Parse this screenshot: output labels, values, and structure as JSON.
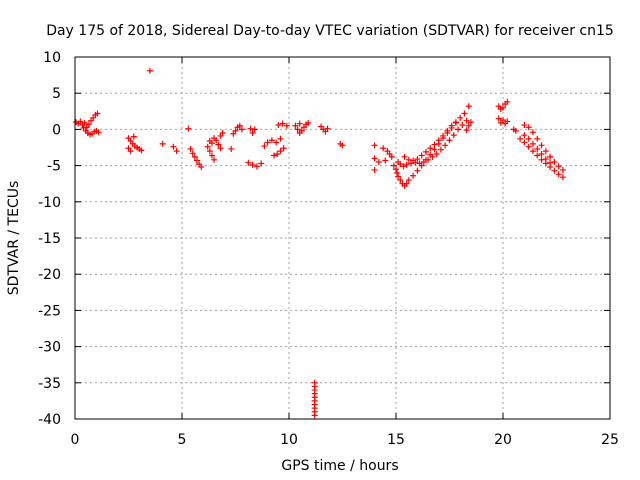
{
  "chart_data": {
    "type": "scatter",
    "title": "Day 175 of 2018, Sidereal Day-to-day VTEC variation (SDTVAR) for receiver cn15",
    "xlabel": "GPS time / hours",
    "ylabel": "SDTVAR / TECUs",
    "xlim": [
      0,
      25
    ],
    "ylim": [
      -40,
      10
    ],
    "x_ticks": [
      0,
      5,
      10,
      15,
      20,
      25
    ],
    "x_tick_labels": [
      "0",
      "5",
      "10",
      "15",
      "20",
      "25"
    ],
    "y_ticks": [
      10,
      5,
      0,
      -5,
      -10,
      -15,
      -20,
      -25,
      -30,
      -35,
      -40
    ],
    "y_tick_labels": [
      "10",
      "5",
      "0",
      "-5",
      "-10",
      "-15",
      "-20",
      "-25",
      "-30",
      "-35",
      "-40"
    ],
    "grid": true,
    "marker": "plus",
    "color": "#ff0000",
    "series": [
      {
        "name": "SDTVAR",
        "points": [
          [
            0.05,
            1.0
          ],
          [
            0.15,
            0.8
          ],
          [
            0.25,
            1.1
          ],
          [
            0.35,
            0.6
          ],
          [
            0.45,
            0.9
          ],
          [
            0.55,
            0.3
          ],
          [
            0.65,
            0.7
          ],
          [
            0.75,
            1.2
          ],
          [
            0.85,
            1.6
          ],
          [
            0.95,
            2.0
          ],
          [
            1.05,
            2.2
          ],
          [
            0.4,
            0.2
          ],
          [
            0.5,
            -0.2
          ],
          [
            0.6,
            -0.5
          ],
          [
            0.7,
            -0.7
          ],
          [
            0.8,
            -0.6
          ],
          [
            0.9,
            -0.3
          ],
          [
            1.0,
            -0.2
          ],
          [
            1.1,
            -0.4
          ],
          [
            2.5,
            -1.2
          ],
          [
            2.6,
            -1.6
          ],
          [
            2.7,
            -2.0
          ],
          [
            2.8,
            -2.3
          ],
          [
            2.9,
            -2.5
          ],
          [
            3.0,
            -2.7
          ],
          [
            3.1,
            -2.9
          ],
          [
            2.5,
            -2.6
          ],
          [
            2.6,
            -3.0
          ],
          [
            2.75,
            -1.0
          ],
          [
            3.5,
            8.1
          ],
          [
            4.1,
            -2.0
          ],
          [
            4.6,
            -2.4
          ],
          [
            4.75,
            -3.0
          ],
          [
            5.3,
            0.1
          ],
          [
            5.4,
            -2.7
          ],
          [
            5.5,
            -3.3
          ],
          [
            5.6,
            -3.8
          ],
          [
            5.7,
            -4.3
          ],
          [
            5.8,
            -4.8
          ],
          [
            5.9,
            -5.2
          ],
          [
            6.2,
            -2.4
          ],
          [
            6.3,
            -3.0
          ],
          [
            6.4,
            -3.6
          ],
          [
            6.5,
            -4.2
          ],
          [
            6.3,
            -1.6
          ],
          [
            6.4,
            -1.9
          ],
          [
            6.5,
            -1.2
          ],
          [
            6.6,
            -1.5
          ],
          [
            6.7,
            -2.1
          ],
          [
            6.8,
            -2.6
          ],
          [
            6.9,
            -0.5
          ],
          [
            6.8,
            -0.9
          ],
          [
            7.3,
            -2.7
          ],
          [
            7.4,
            -0.6
          ],
          [
            7.5,
            -0.2
          ],
          [
            7.6,
            0.3
          ],
          [
            7.7,
            0.5
          ],
          [
            7.8,
            0.0
          ],
          [
            8.2,
            0.1
          ],
          [
            8.3,
            -0.5
          ],
          [
            8.4,
            0.0
          ],
          [
            8.1,
            -4.6
          ],
          [
            8.3,
            -4.9
          ],
          [
            8.5,
            -5.1
          ],
          [
            8.7,
            -4.7
          ],
          [
            8.85,
            -2.3
          ],
          [
            9.0,
            -1.8
          ],
          [
            9.2,
            -1.5
          ],
          [
            9.3,
            -3.6
          ],
          [
            9.45,
            -3.4
          ],
          [
            9.6,
            -3.0
          ],
          [
            9.75,
            -2.6
          ],
          [
            9.5,
            0.6
          ],
          [
            9.7,
            0.8
          ],
          [
            9.9,
            0.5
          ],
          [
            9.4,
            -1.8
          ],
          [
            9.6,
            -1.3
          ],
          [
            10.3,
            0.5
          ],
          [
            10.4,
            0.0
          ],
          [
            10.5,
            -0.5
          ],
          [
            10.6,
            -0.2
          ],
          [
            10.7,
            0.3
          ],
          [
            10.8,
            0.7
          ],
          [
            10.9,
            0.9
          ],
          [
            10.5,
            0.8
          ],
          [
            11.2,
            -35.0
          ],
          [
            11.2,
            -35.5
          ],
          [
            11.2,
            -36.0
          ],
          [
            11.2,
            -36.5
          ],
          [
            11.2,
            -37.0
          ],
          [
            11.2,
            -37.5
          ],
          [
            11.2,
            -38.0
          ],
          [
            11.2,
            -38.5
          ],
          [
            11.2,
            -39.0
          ],
          [
            11.2,
            -39.5
          ],
          [
            11.5,
            0.4
          ],
          [
            11.6,
            0.0
          ],
          [
            11.7,
            -0.3
          ],
          [
            11.8,
            0.1
          ],
          [
            12.4,
            -2.0
          ],
          [
            12.5,
            -2.2
          ],
          [
            14.0,
            -2.2
          ],
          [
            14.0,
            -4.0
          ],
          [
            14.0,
            -5.6
          ],
          [
            14.2,
            -4.5
          ],
          [
            14.4,
            -2.6
          ],
          [
            14.5,
            -4.3
          ],
          [
            14.6,
            -3.0
          ],
          [
            14.7,
            -3.4
          ],
          [
            14.8,
            -3.8
          ],
          [
            14.9,
            -5.0
          ],
          [
            15.0,
            -5.5
          ],
          [
            15.05,
            -6.0
          ],
          [
            15.1,
            -6.5
          ],
          [
            15.2,
            -7.0
          ],
          [
            15.3,
            -7.5
          ],
          [
            15.4,
            -7.8
          ],
          [
            15.5,
            -7.5
          ],
          [
            15.6,
            -7.0
          ],
          [
            15.8,
            -6.4
          ],
          [
            16.0,
            -5.7
          ],
          [
            16.2,
            -5.0
          ],
          [
            16.4,
            -4.2
          ],
          [
            16.6,
            -3.5
          ],
          [
            16.8,
            -2.8
          ],
          [
            17.0,
            -2.0
          ],
          [
            17.2,
            -1.2
          ],
          [
            17.4,
            -0.5
          ],
          [
            17.6,
            0.2
          ],
          [
            17.8,
            1.0
          ],
          [
            18.0,
            1.6
          ],
          [
            18.2,
            2.2
          ],
          [
            18.4,
            3.2
          ],
          [
            15.1,
            -4.5
          ],
          [
            15.2,
            -4.8
          ],
          [
            15.35,
            -5.1
          ],
          [
            15.5,
            -4.9
          ],
          [
            15.7,
            -4.7
          ],
          [
            15.9,
            -4.6
          ],
          [
            16.1,
            -4.7
          ],
          [
            16.3,
            -4.5
          ],
          [
            16.5,
            -4.2
          ],
          [
            16.7,
            -3.8
          ],
          [
            16.9,
            -3.4
          ],
          [
            17.1,
            -2.8
          ],
          [
            17.3,
            -2.2
          ],
          [
            17.5,
            -1.5
          ],
          [
            17.7,
            -0.8
          ],
          [
            17.9,
            0.0
          ],
          [
            18.1,
            0.6
          ],
          [
            18.3,
            1.2
          ],
          [
            15.4,
            -3.8
          ],
          [
            15.6,
            -4.2
          ],
          [
            15.8,
            -4.3
          ],
          [
            16.0,
            -4.1
          ],
          [
            16.2,
            -3.6
          ],
          [
            16.4,
            -3.1
          ],
          [
            16.6,
            -2.6
          ],
          [
            16.8,
            -2.1
          ],
          [
            17.0,
            -1.5
          ],
          [
            17.2,
            -0.9
          ],
          [
            17.4,
            -0.2
          ],
          [
            17.6,
            0.5
          ],
          [
            17.8,
            0.9
          ],
          [
            18.3,
            -0.1
          ],
          [
            18.4,
            0.5
          ],
          [
            18.5,
            1.0
          ],
          [
            19.8,
            3.2
          ],
          [
            19.9,
            2.8
          ],
          [
            20.0,
            3.0
          ],
          [
            20.1,
            3.5
          ],
          [
            20.2,
            3.8
          ],
          [
            19.8,
            1.5
          ],
          [
            19.9,
            0.9
          ],
          [
            20.0,
            1.3
          ],
          [
            20.1,
            0.8
          ],
          [
            20.2,
            1.1
          ],
          [
            20.5,
            0.0
          ],
          [
            20.6,
            -0.2
          ],
          [
            20.8,
            -1.3
          ],
          [
            21.0,
            -1.8
          ],
          [
            21.2,
            -2.4
          ],
          [
            21.4,
            -3.0
          ],
          [
            21.6,
            -3.6
          ],
          [
            21.8,
            -4.2
          ],
          [
            22.0,
            -4.7
          ],
          [
            22.2,
            -5.2
          ],
          [
            22.4,
            -5.7
          ],
          [
            22.6,
            -6.2
          ],
          [
            22.8,
            -6.6
          ],
          [
            21.0,
            0.6
          ],
          [
            21.2,
            0.3
          ],
          [
            21.4,
            -0.4
          ],
          [
            21.6,
            -1.3
          ],
          [
            21.8,
            -2.2
          ],
          [
            22.0,
            -3.0
          ],
          [
            22.2,
            -3.8
          ],
          [
            22.4,
            -4.5
          ],
          [
            22.6,
            -5.1
          ],
          [
            22.8,
            -5.6
          ],
          [
            21.0,
            -0.8
          ],
          [
            21.2,
            -1.3
          ],
          [
            21.4,
            -2.0
          ],
          [
            21.6,
            -2.7
          ],
          [
            21.8,
            -3.4
          ],
          [
            22.0,
            -4.1
          ],
          [
            22.2,
            -4.6
          ]
        ]
      }
    ]
  }
}
